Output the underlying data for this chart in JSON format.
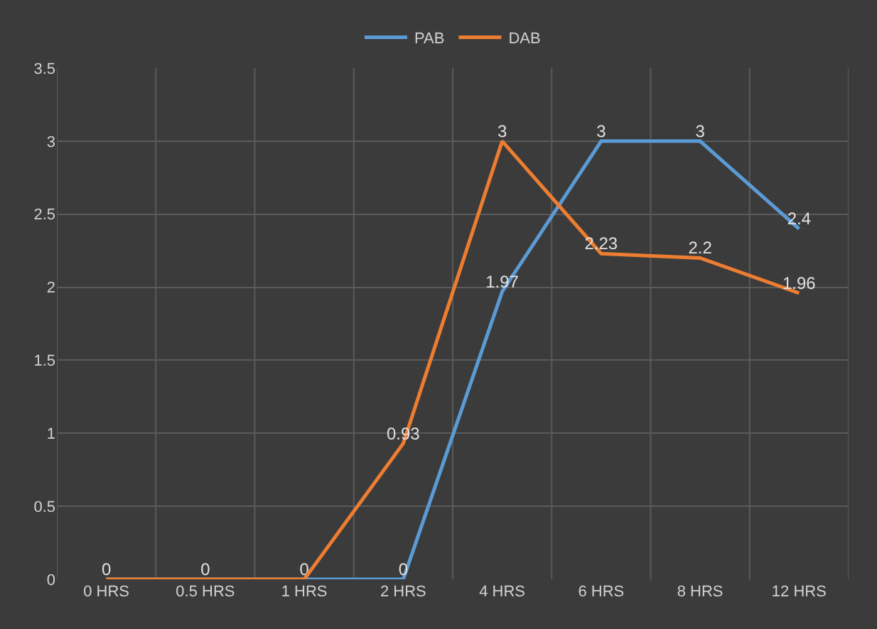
{
  "chart_data": {
    "type": "line",
    "categories": [
      "0 HRS",
      "0.5 HRS",
      "1 HRS",
      "2 HRS",
      "4 HRS",
      "6 HRS",
      "8 HRS",
      "12 HRS"
    ],
    "series": [
      {
        "name": "PAB",
        "color": "#5b9bd5",
        "values": [
          0,
          0,
          0,
          0,
          1.97,
          3,
          3,
          2.4
        ],
        "value_labels": [
          "0",
          "0",
          "0",
          "0",
          "1.97",
          "3",
          "3",
          "2.4"
        ]
      },
      {
        "name": "DAB",
        "color": "#ed7d31",
        "values": [
          0,
          0,
          0,
          0.93,
          3,
          2.23,
          2.2,
          1.96
        ],
        "value_labels": [
          null,
          null,
          null,
          "0.93",
          "3",
          "2.23",
          "2.2",
          "1.96"
        ]
      }
    ],
    "ylim": [
      0,
      3.5
    ],
    "yticks": [
      0,
      0.5,
      1,
      1.5,
      2,
      2.5,
      3,
      3.5
    ],
    "grid": true,
    "legend": "top",
    "marker": "none",
    "line_style": "solid"
  }
}
